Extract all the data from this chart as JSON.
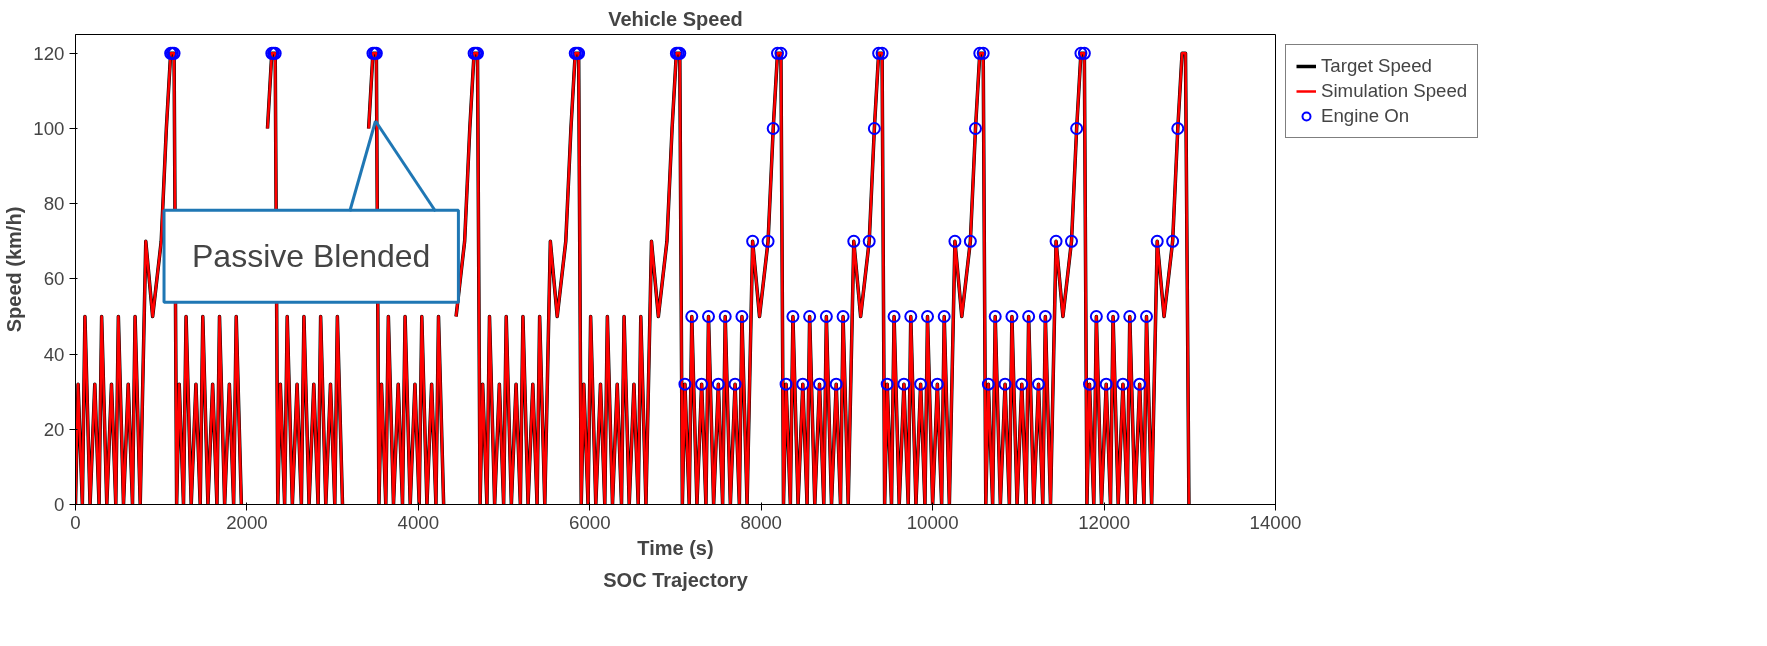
{
  "chart_data": {
    "type": "line",
    "title": "Vehicle Speed",
    "xlabel": "Time (s)",
    "ylabel": "Speed (km/h)",
    "annotations": [
      {
        "text": "Passive Blended",
        "x": 3500,
        "y": 102
      },
      "SOC Trajectory"
    ],
    "xlim": [
      0,
      14000
    ],
    "xticks": [
      0,
      2000,
      4000,
      6000,
      8000,
      10000,
      12000,
      14000
    ],
    "ylim": [
      0,
      125
    ],
    "yticks": [
      0,
      20,
      40,
      60,
      80,
      100,
      120
    ],
    "grid": false,
    "legend": "right",
    "line_style": "solid",
    "series": [
      {
        "name": "Target Speed",
        "color": "#000000",
        "x": [
          0,
          30,
          80,
          110,
          170,
          225,
          275,
          305,
          365,
          420,
          470,
          500,
          560,
          615,
          665,
          695,
          755,
          820,
          900,
          1000,
          1060,
          1110,
          1150,
          1180,
          1210,
          1260,
          1290,
          1350,
          1405,
          1455,
          1485,
          1545,
          1600,
          1650,
          1680,
          1740,
          1795,
          1845,
          1875,
          1935,
          2000,
          2080,
          2180,
          2240,
          2290,
          2330,
          2360,
          2390,
          2440,
          2470,
          2530,
          2585,
          2635,
          2665,
          2725,
          2780,
          2830,
          2860,
          2920,
          2975,
          3025,
          3055,
          3115,
          3180,
          3260,
          3360,
          3420,
          3470,
          3510,
          3540,
          3570,
          3620,
          3650,
          3710,
          3765,
          3815,
          3845,
          3905,
          3960,
          4010,
          4040,
          4100,
          4155,
          4205,
          4235,
          4295,
          4360,
          4440,
          4540,
          4600,
          4650,
          4690,
          4720,
          4750,
          4800,
          4830,
          4890,
          4945,
          4995,
          5025,
          5085,
          5140,
          5190,
          5220,
          5280,
          5335,
          5385,
          5415,
          5475,
          5540,
          5620,
          5720,
          5780,
          5830,
          5870,
          5900,
          5930,
          5980,
          6010,
          6070,
          6125,
          6175,
          6205,
          6265,
          6320,
          6370,
          6400,
          6460,
          6515,
          6565,
          6595,
          6655,
          6720,
          6800,
          6900,
          6960,
          7010,
          7050,
          7080,
          7110,
          7160,
          7190,
          7250,
          7305,
          7355,
          7385,
          7445,
          7500,
          7550,
          7580,
          7640,
          7695,
          7745,
          7775,
          7835,
          7900,
          7980,
          8080,
          8140,
          8190,
          8230,
          8260,
          8290,
          8340,
          8370,
          8430,
          8485,
          8535,
          8565,
          8625,
          8680,
          8730,
          8760,
          8820,
          8875,
          8925,
          8955,
          9015,
          9080,
          9160,
          9260,
          9320,
          9370,
          9410,
          9440,
          9470,
          9520,
          9550,
          9610,
          9665,
          9715,
          9745,
          9805,
          9860,
          9910,
          9940,
          10000,
          10055,
          10105,
          10135,
          10195,
          10260,
          10340,
          10440,
          10500,
          10550,
          10590,
          10620,
          10650,
          10700,
          10730,
          10790,
          10845,
          10895,
          10925,
          10985,
          11040,
          11090,
          11120,
          11180,
          11235,
          11285,
          11315,
          11375,
          11440,
          11520,
          11620,
          11680,
          11730,
          11770,
          11800,
          11830,
          11880,
          11910,
          11970,
          12025,
          12075,
          12105,
          12165,
          12220,
          12270,
          12300,
          12360,
          12415,
          12465,
          12495,
          12555,
          12620,
          12700,
          12800,
          12860,
          12910,
          12950,
          12990
        ],
        "values": [
          0,
          32,
          0,
          50,
          0,
          32,
          0,
          50,
          0,
          32,
          0,
          50,
          0,
          32,
          0,
          50,
          0,
          70,
          50,
          70,
          100,
          120,
          120,
          0,
          32,
          0,
          50,
          0,
          32,
          0,
          50,
          0,
          32,
          0,
          50,
          0,
          32,
          0,
          50,
          0,
          null,
          null,
          null,
          100,
          120,
          120,
          0,
          32,
          0,
          50,
          0,
          32,
          0,
          50,
          0,
          32,
          0,
          50,
          0,
          32,
          0,
          50,
          0,
          null,
          null,
          null,
          100,
          120,
          120,
          0,
          32,
          0,
          50,
          0,
          32,
          0,
          50,
          0,
          32,
          0,
          50,
          0,
          32,
          0,
          50,
          0,
          null,
          50,
          70,
          100,
          120,
          120,
          0,
          32,
          0,
          50,
          0,
          32,
          0,
          50,
          0,
          32,
          0,
          50,
          0,
          32,
          0,
          50,
          0,
          70,
          50,
          70,
          100,
          120,
          120,
          0,
          32,
          0,
          50,
          0,
          32,
          0,
          50,
          0,
          32,
          0,
          50,
          0,
          32,
          0,
          50,
          0,
          70,
          50,
          70,
          100,
          120,
          120,
          0,
          32,
          0,
          50,
          0,
          32,
          0,
          50,
          0,
          32,
          0,
          50,
          0,
          32,
          0,
          50,
          0,
          70,
          50,
          70,
          100,
          120,
          120,
          0,
          32,
          0,
          50,
          0,
          32,
          0,
          50,
          0,
          32,
          0,
          50,
          0,
          32,
          0,
          50,
          0,
          70,
          50,
          70,
          100,
          120,
          120,
          0,
          32,
          0,
          50,
          0,
          32,
          0,
          50,
          0,
          32,
          0,
          50,
          0,
          32,
          0,
          50,
          0,
          70,
          50,
          70,
          100,
          120,
          120,
          0,
          32,
          0,
          50,
          0,
          32,
          0,
          50,
          0,
          32,
          0,
          50,
          0,
          32,
          0,
          50,
          0,
          70,
          50,
          70,
          100,
          120,
          120,
          0,
          32,
          0,
          50,
          0,
          32,
          0,
          50,
          0,
          32,
          0,
          50,
          0,
          32,
          0,
          50,
          0,
          70,
          50,
          70,
          100,
          120,
          120,
          0
        ]
      },
      {
        "name": "Simulation Speed",
        "color": "#ff0000",
        "x": [
          0,
          30,
          80,
          110,
          170,
          225,
          275,
          305,
          365,
          420,
          470,
          500,
          560,
          615,
          665,
          695,
          755,
          820,
          900,
          1000,
          1060,
          1110,
          1150,
          1180,
          1210,
          1260,
          1290,
          1350,
          1405,
          1455,
          1485,
          1545,
          1600,
          1650,
          1680,
          1740,
          1795,
          1845,
          1875,
          1935,
          2000,
          2080,
          2180,
          2240,
          2290,
          2330,
          2360,
          2390,
          2440,
          2470,
          2530,
          2585,
          2635,
          2665,
          2725,
          2780,
          2830,
          2860,
          2920,
          2975,
          3025,
          3055,
          3115,
          3180,
          3260,
          3360,
          3420,
          3470,
          3510,
          3540,
          3570,
          3620,
          3650,
          3710,
          3765,
          3815,
          3845,
          3905,
          3960,
          4010,
          4040,
          4100,
          4155,
          4205,
          4235,
          4295,
          4360,
          4440,
          4540,
          4600,
          4650,
          4690,
          4720,
          4750,
          4800,
          4830,
          4890,
          4945,
          4995,
          5025,
          5085,
          5140,
          5190,
          5220,
          5280,
          5335,
          5385,
          5415,
          5475,
          5540,
          5620,
          5720,
          5780,
          5830,
          5870,
          5900,
          5930,
          5980,
          6010,
          6070,
          6125,
          6175,
          6205,
          6265,
          6320,
          6370,
          6400,
          6460,
          6515,
          6565,
          6595,
          6655,
          6720,
          6800,
          6900,
          6960,
          7010,
          7050,
          7080,
          7110,
          7160,
          7190,
          7250,
          7305,
          7355,
          7385,
          7445,
          7500,
          7550,
          7580,
          7640,
          7695,
          7745,
          7775,
          7835,
          7900,
          7980,
          8080,
          8140,
          8190,
          8230,
          8260,
          8290,
          8340,
          8370,
          8430,
          8485,
          8535,
          8565,
          8625,
          8680,
          8730,
          8760,
          8820,
          8875,
          8925,
          8955,
          9015,
          9080,
          9160,
          9260,
          9320,
          9370,
          9410,
          9440,
          9470,
          9520,
          9550,
          9610,
          9665,
          9715,
          9745,
          9805,
          9860,
          9910,
          9940,
          10000,
          10055,
          10105,
          10135,
          10195,
          10260,
          10340,
          10440,
          10500,
          10550,
          10590,
          10620,
          10650,
          10700,
          10730,
          10790,
          10845,
          10895,
          10925,
          10985,
          11040,
          11090,
          11120,
          11180,
          11235,
          11285,
          11315,
          11375,
          11440,
          11520,
          11620,
          11680,
          11730,
          11770,
          11800,
          11830,
          11880,
          11910,
          11970,
          12025,
          12075,
          12105,
          12165,
          12220,
          12270,
          12300,
          12360,
          12415,
          12465,
          12495,
          12555,
          12620,
          12700,
          12800,
          12860,
          12910,
          12950,
          12990
        ],
        "values": [
          0,
          32,
          0,
          50,
          0,
          32,
          0,
          50,
          0,
          32,
          0,
          50,
          0,
          32,
          0,
          50,
          0,
          70,
          50,
          70,
          100,
          120,
          120,
          0,
          32,
          0,
          50,
          0,
          32,
          0,
          50,
          0,
          32,
          0,
          50,
          0,
          32,
          0,
          50,
          0,
          null,
          null,
          null,
          100,
          120,
          120,
          0,
          32,
          0,
          50,
          0,
          32,
          0,
          50,
          0,
          32,
          0,
          50,
          0,
          32,
          0,
          50,
          0,
          null,
          null,
          null,
          100,
          120,
          120,
          0,
          32,
          0,
          50,
          0,
          32,
          0,
          50,
          0,
          32,
          0,
          50,
          0,
          32,
          0,
          50,
          0,
          null,
          50,
          70,
          100,
          120,
          120,
          0,
          32,
          0,
          50,
          0,
          32,
          0,
          50,
          0,
          32,
          0,
          50,
          0,
          32,
          0,
          50,
          0,
          70,
          50,
          70,
          100,
          120,
          120,
          0,
          32,
          0,
          50,
          0,
          32,
          0,
          50,
          0,
          32,
          0,
          50,
          0,
          32,
          0,
          50,
          0,
          70,
          50,
          70,
          100,
          120,
          120,
          0,
          32,
          0,
          50,
          0,
          32,
          0,
          50,
          0,
          32,
          0,
          50,
          0,
          32,
          0,
          50,
          0,
          70,
          50,
          70,
          100,
          120,
          120,
          0,
          32,
          0,
          50,
          0,
          32,
          0,
          50,
          0,
          32,
          0,
          50,
          0,
          32,
          0,
          50,
          0,
          70,
          50,
          70,
          100,
          120,
          120,
          0,
          32,
          0,
          50,
          0,
          32,
          0,
          50,
          0,
          32,
          0,
          50,
          0,
          32,
          0,
          50,
          0,
          70,
          50,
          70,
          100,
          120,
          120,
          0,
          32,
          0,
          50,
          0,
          32,
          0,
          50,
          0,
          32,
          0,
          50,
          0,
          32,
          0,
          50,
          0,
          70,
          50,
          70,
          100,
          120,
          120,
          0,
          32,
          0,
          50,
          0,
          32,
          0,
          50,
          0,
          32,
          0,
          50,
          0,
          32,
          0,
          50,
          0,
          70,
          50,
          70,
          100,
          120,
          120,
          0
        ]
      },
      {
        "name": "Engine On",
        "color": "#0000ff",
        "type": "scatter",
        "marker": "circle",
        "x": [
          1110,
          1130,
          1150,
          2290,
          2310,
          2330,
          3470,
          3490,
          3510,
          4650,
          4670,
          4690,
          5830,
          5850,
          5870,
          7010,
          7030,
          7050,
          7110,
          7190,
          7305,
          7385,
          7500,
          7580,
          7695,
          7775,
          7900,
          8080,
          8140,
          8190,
          8230,
          8290,
          8370,
          8485,
          8565,
          8680,
          8760,
          8875,
          8955,
          9080,
          9260,
          9320,
          9370,
          9410,
          9470,
          9550,
          9665,
          9745,
          9860,
          9940,
          10055,
          10135,
          10260,
          10440,
          10500,
          10550,
          10590,
          10650,
          10730,
          10845,
          10925,
          11040,
          11120,
          11235,
          11315,
          11440,
          11620,
          11680,
          11730,
          11770,
          11830,
          11910,
          12025,
          12105,
          12220,
          12300,
          12415,
          12495,
          12620,
          12800,
          12860
        ],
        "values": [
          120,
          120,
          120,
          120,
          120,
          120,
          120,
          120,
          120,
          120,
          120,
          120,
          120,
          120,
          120,
          120,
          120,
          120,
          32,
          50,
          32,
          50,
          32,
          50,
          32,
          50,
          70,
          70,
          100,
          120,
          120,
          32,
          50,
          32,
          50,
          32,
          50,
          32,
          50,
          70,
          70,
          100,
          120,
          120,
          32,
          50,
          32,
          50,
          32,
          50,
          32,
          50,
          70,
          70,
          100,
          120,
          120,
          32,
          50,
          32,
          50,
          32,
          50,
          32,
          50,
          70,
          70,
          100,
          120,
          120,
          32,
          50,
          32,
          50,
          32,
          50,
          32,
          50,
          70,
          70,
          100
        ]
      }
    ]
  }
}
